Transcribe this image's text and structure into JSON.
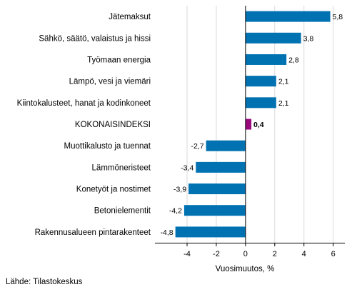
{
  "chart_data": {
    "type": "bar",
    "orientation": "horizontal",
    "categories": [
      "Jätemaksut",
      "Sähkö, säätö, valaistus ja hissi",
      "Työmaan energia",
      "Lämpö, vesi ja viemäri",
      "Kiintokalusteet, hanat ja kodinkoneet",
      "KOKONAISINDEKSI",
      "Muottikalusto ja tuennat",
      "Lämmöneristeet",
      "Konetyöt ja nostimet",
      "Betonielementit",
      "Rakennusalueen pintarakenteet"
    ],
    "values": [
      5.8,
      3.8,
      2.8,
      2.1,
      2.1,
      0.4,
      -2.7,
      -3.4,
      -3.9,
      -4.2,
      -4.8
    ],
    "value_labels": [
      "5,8",
      "3,8",
      "2,8",
      "2,1",
      "2,1",
      "0,4",
      "-2,7",
      "-3,4",
      "-3,9",
      "-4,2",
      "-4,8"
    ],
    "highlight_category": "KOKONAISINDEKSI",
    "xlabel": "Vuosimuutos, %",
    "xlim": [
      -6.2,
      6.8
    ],
    "xticks": [
      -4,
      -2,
      0,
      2,
      4,
      6
    ],
    "xtick_labels": [
      "-4",
      "-2",
      "0",
      "2",
      "4",
      "6"
    ],
    "grid": "vertical",
    "colors": {
      "bar": "#0072b2",
      "highlight": "#9b0a7d",
      "grid": "#d9d9d9",
      "axis": "#000000"
    }
  },
  "source": "Lähde: Tilastokeskus"
}
